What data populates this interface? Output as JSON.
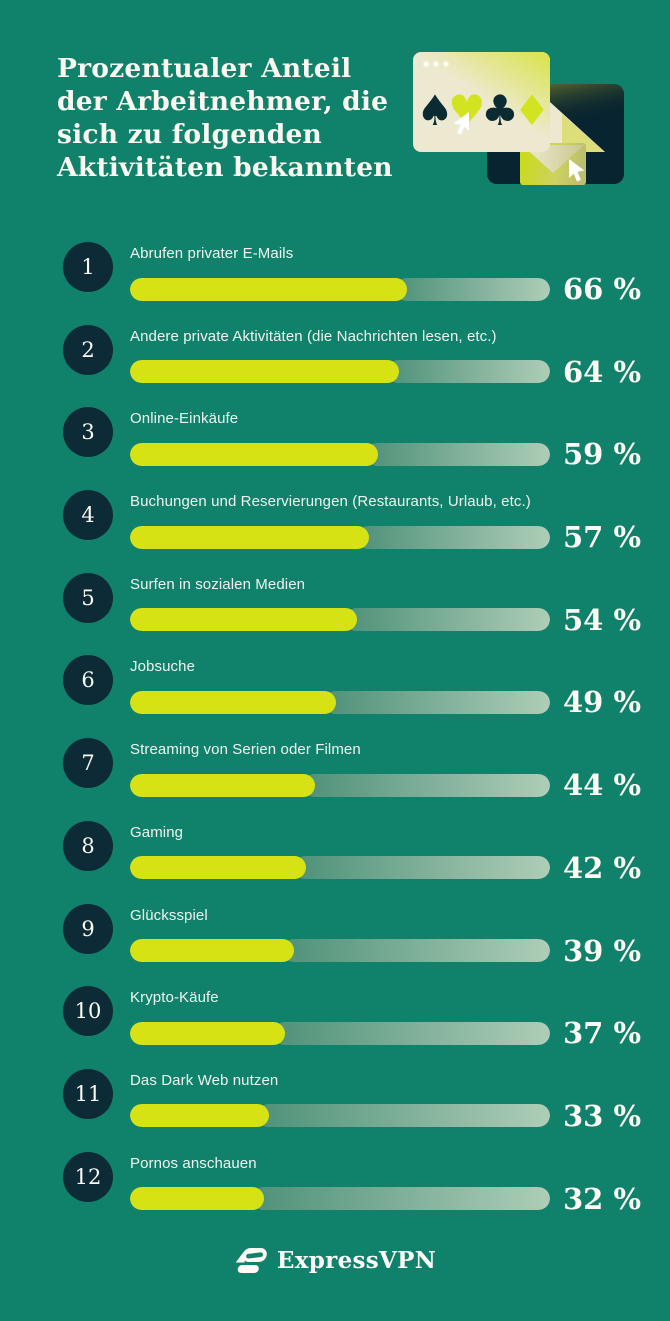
{
  "header": {
    "title_lines": [
      "Prozentualer Anteil",
      "der Arbeitnehmer, die",
      "sich zu folgenden",
      "Aktivitäten bekannten"
    ]
  },
  "illustration": {
    "description": "browser window with card suits, folded page and envelope on dark panel, two cursors",
    "suits": [
      "♠",
      "♥",
      "♣",
      "♦"
    ]
  },
  "chart_data": {
    "type": "bar",
    "orientation": "horizontal",
    "title": "Prozentualer Anteil der Arbeitnehmer, die sich zu folgenden Aktivitäten bekannten",
    "categories": [
      "Abrufen privater E-Mails",
      "Andere private Aktivitäten (die Nachrichten lesen, etc.)",
      "Online-Einkäufe",
      "Buchungen und Reservierungen (Restaurants, Urlaub, etc.)",
      "Surfen in sozialen Medien",
      "Jobsuche",
      "Streaming von Serien oder Filmen",
      "Gaming",
      "Glücksspiel",
      "Krypto-Käufe",
      "Das Dark Web nutzen",
      "Pornos anschauen"
    ],
    "values": [
      66,
      64,
      59,
      57,
      54,
      49,
      44,
      42,
      39,
      37,
      33,
      32
    ],
    "ranks": [
      "1",
      "2",
      "3",
      "4",
      "5",
      "6",
      "7",
      "8",
      "9",
      "10",
      "11",
      "12"
    ],
    "value_suffix": " %",
    "xlim": [
      0,
      100
    ],
    "legend": false,
    "grid": false
  },
  "footer": {
    "brand": "ExpressVPN"
  },
  "colors": {
    "bg": "#10816A",
    "navy": "#0C2B36",
    "barFill": "#D7E214",
    "trackFrom": "#4F9179",
    "trackTo": "#AECDB7",
    "titleText": "#FAF8EF",
    "labelText": "#EFF4F0",
    "pctText": "#FCFAF2",
    "cream": "#EDE9D0",
    "lime": "#D2E41F"
  }
}
